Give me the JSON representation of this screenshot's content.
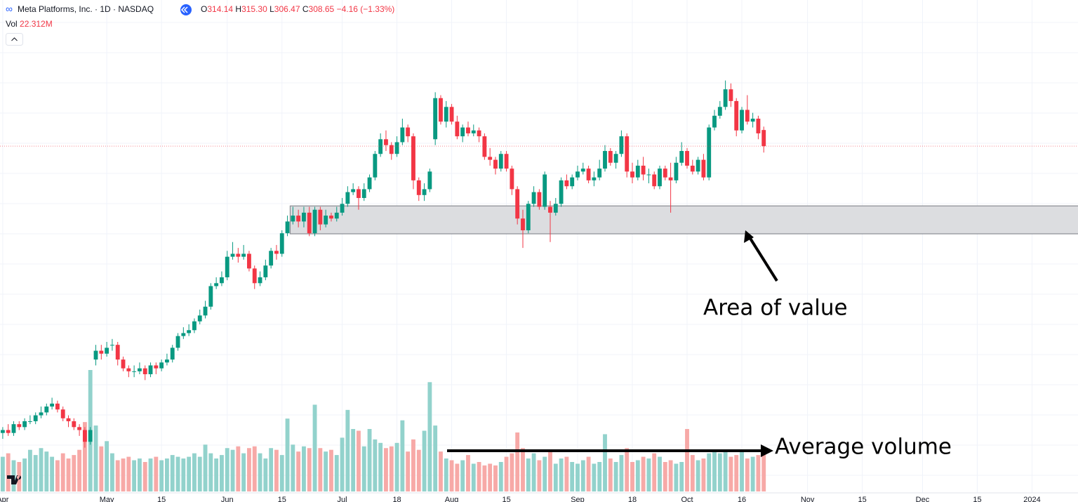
{
  "chart_data": {
    "type": "candlestick",
    "header": {
      "symbol": "Meta Platforms, Inc. · 1D · NASDAQ",
      "ohlc": [
        [
          "O",
          "314.14"
        ],
        [
          "H",
          "315.30"
        ],
        [
          "L",
          "306.47"
        ],
        [
          "C",
          "308.65"
        ]
      ],
      "change": "−4.16 (−1.33%)",
      "volume_label": "Vol",
      "volume_value": "22.312M"
    },
    "open": [
      211,
      212,
      211,
      214,
      213,
      215,
      215,
      217,
      218,
      220,
      221,
      219,
      216,
      215,
      213,
      212,
      208,
      236,
      239,
      238,
      241,
      241,
      236,
      233,
      232,
      232,
      233,
      231,
      234,
      233,
      235,
      236,
      240,
      244,
      245,
      246,
      249,
      251,
      254,
      261,
      262,
      264,
      271,
      272,
      271,
      272,
      267,
      262,
      264,
      268,
      273,
      272,
      279,
      283,
      285,
      283,
      286,
      279,
      287,
      282,
      285,
      284,
      286,
      289,
      293,
      294,
      291,
      294,
      298,
      306,
      311,
      309,
      306,
      310,
      315,
      312,
      297,
      292,
      294,
      311,
      325,
      317,
      322,
      317,
      312,
      315,
      313,
      314,
      312,
      305,
      304,
      301,
      306,
      301,
      294,
      284,
      280,
      289,
      293,
      288,
      288,
      286,
      289,
      297,
      295,
      298,
      300,
      301,
      297,
      298,
      301,
      307,
      303,
      306,
      312,
      300,
      298,
      302,
      299,
      299,
      295,
      301,
      298,
      297,
      303,
      307,
      302,
      300,
      304,
      298,
      315,
      319,
      322,
      328,
      324,
      314,
      321,
      317,
      318,
      314.14
    ],
    "high": [
      213,
      214,
      215,
      215,
      216,
      217,
      218,
      220,
      221,
      223,
      222,
      220,
      217,
      216,
      214,
      213,
      213,
      241,
      241,
      242,
      243,
      242,
      237,
      234,
      234,
      235,
      234,
      235,
      235,
      236,
      238,
      241,
      245,
      247,
      248,
      250,
      253,
      256,
      262,
      264,
      266,
      273,
      276,
      274,
      275,
      273,
      268,
      266,
      270,
      274,
      275,
      280,
      285,
      288,
      287,
      288,
      288,
      288,
      288,
      287,
      286,
      288,
      291,
      295,
      296,
      295,
      296,
      299,
      307,
      313,
      314,
      310,
      312,
      318,
      316,
      313,
      298,
      296,
      301,
      327,
      326,
      324,
      323,
      319,
      316,
      317,
      316,
      315,
      313,
      308,
      305,
      307,
      307,
      302,
      295,
      287,
      290,
      295,
      294,
      300,
      290,
      291,
      298,
      299,
      299,
      302,
      303,
      302,
      300,
      304,
      309,
      308,
      307,
      314,
      313,
      303,
      304,
      305,
      301,
      300,
      302,
      302,
      303,
      305,
      310,
      308,
      304,
      305,
      306,
      316,
      321,
      324,
      331,
      330,
      325,
      322,
      326,
      320,
      319,
      315.3
    ],
    "low": [
      209,
      210,
      210,
      212,
      212,
      214,
      214,
      216,
      217,
      219,
      218,
      215,
      213,
      212,
      210,
      206,
      207,
      234,
      236,
      237,
      239,
      234,
      232,
      230,
      230,
      231,
      229,
      230,
      231,
      232,
      234,
      235,
      239,
      243,
      244,
      245,
      248,
      250,
      253,
      260,
      261,
      263,
      270,
      269,
      270,
      266,
      260,
      261,
      263,
      267,
      270,
      271,
      278,
      282,
      281,
      281,
      278,
      278,
      280,
      281,
      283,
      283,
      285,
      288,
      292,
      287,
      290,
      293,
      297,
      305,
      307,
      304,
      305,
      309,
      310,
      294,
      290,
      290,
      293,
      309,
      316,
      315,
      316,
      311,
      310,
      312,
      312,
      310,
      304,
      302,
      299,
      300,
      300,
      292,
      282,
      274,
      279,
      288,
      287,
      287,
      276,
      285,
      288,
      294,
      294,
      297,
      299,
      296,
      295,
      297,
      300,
      302,
      301,
      305,
      298,
      296,
      297,
      297,
      296,
      294,
      294,
      297,
      286,
      296,
      302,
      301,
      299,
      299,
      297,
      297,
      314,
      318,
      321,
      322,
      312,
      313,
      316,
      315,
      311,
      306.47
    ],
    "close": [
      212,
      211,
      214,
      213,
      215,
      215,
      217,
      218,
      220,
      221,
      219,
      216,
      215,
      213,
      212,
      208,
      212,
      239,
      238,
      240,
      241,
      236,
      233,
      232,
      232,
      233,
      231,
      234,
      233,
      235,
      236,
      240,
      244,
      245,
      246,
      249,
      251,
      254,
      261,
      262,
      264,
      271,
      272,
      271,
      272,
      267,
      262,
      264,
      268,
      273,
      272,
      279,
      283,
      285,
      283,
      286,
      279,
      287,
      282,
      285,
      284,
      286,
      289,
      293,
      294,
      291,
      294,
      298,
      306,
      311,
      309,
      306,
      310,
      315,
      312,
      297,
      292,
      294,
      300,
      325,
      317,
      322,
      317,
      312,
      315,
      313,
      314,
      312,
      305,
      304,
      301,
      306,
      301,
      294,
      284,
      280,
      289,
      293,
      288,
      299,
      286,
      289,
      297,
      295,
      298,
      300,
      301,
      297,
      298,
      301,
      307,
      303,
      306,
      312,
      300,
      298,
      302,
      299,
      299,
      295,
      301,
      298,
      297,
      303,
      307,
      302,
      300,
      304,
      298,
      315,
      319,
      322,
      328,
      324,
      314,
      321,
      317,
      318,
      313,
      308.65
    ],
    "volume": [
      20,
      22,
      18,
      17,
      19,
      24,
      21,
      25,
      23,
      20,
      18,
      22,
      19,
      21,
      24,
      40,
      70,
      38,
      26,
      29,
      22,
      18,
      19,
      20,
      18,
      19,
      17,
      19,
      20,
      18,
      19,
      21,
      20,
      19,
      20,
      22,
      20,
      27,
      22,
      19,
      21,
      25,
      24,
      26,
      22,
      25,
      26,
      22,
      19,
      25,
      24,
      21,
      42,
      27,
      23,
      26,
      25,
      50,
      25,
      23,
      24,
      21,
      31,
      47,
      36,
      35,
      26,
      36,
      30,
      28,
      25,
      26,
      28,
      41,
      23,
      30,
      24,
      35,
      63,
      38,
      23,
      19,
      18,
      16,
      18,
      21,
      16,
      17,
      15,
      16,
      15,
      17,
      20,
      22,
      34,
      25,
      19,
      22,
      18,
      20,
      24,
      16,
      19,
      20,
      17,
      16,
      18,
      20,
      16,
      17,
      33,
      19,
      17,
      21,
      25,
      17,
      18,
      20,
      19,
      22,
      20,
      17,
      18,
      16,
      17,
      36,
      21,
      18,
      19,
      22,
      24,
      22,
      23,
      20,
      21,
      23,
      19,
      20,
      21,
      22.312
    ],
    "xlim": [
      -0.5,
      196.4
    ],
    "xticks": [
      {
        "value": 0,
        "label": "Apr"
      },
      {
        "value": 19,
        "label": "May"
      },
      {
        "value": 29,
        "label": "15"
      },
      {
        "value": 41,
        "label": "Jun"
      },
      {
        "value": 51,
        "label": "15"
      },
      {
        "value": 62,
        "label": "Jul"
      },
      {
        "value": 72,
        "label": "18"
      },
      {
        "value": 82,
        "label": "Aug"
      },
      {
        "value": 92,
        "label": "15"
      },
      {
        "value": 105,
        "label": "Sep"
      },
      {
        "value": 115,
        "label": "18"
      },
      {
        "value": 125,
        "label": "Oct"
      },
      {
        "value": 135,
        "label": "16"
      },
      {
        "value": 147,
        "label": "Nov"
      },
      {
        "value": 157,
        "label": "15"
      },
      {
        "value": 168,
        "label": "Dec"
      },
      {
        "value": 178,
        "label": "15"
      },
      {
        "value": 188,
        "label": "2024"
      }
    ],
    "ylim": [
      187.5,
      358.4
    ],
    "volume_ylim": [
      0,
      70
    ],
    "zone": {
      "x_start": 52.5,
      "low": 278.8,
      "high": 288.3
    },
    "annotations": {
      "zone_label": "Area of value",
      "volume_label": "Average volume"
    },
    "up_color": "#089981",
    "down_color": "#f23645",
    "volume_up_color": "#92d2cc",
    "volume_down_color": "#f7a9a7",
    "grid": true
  }
}
